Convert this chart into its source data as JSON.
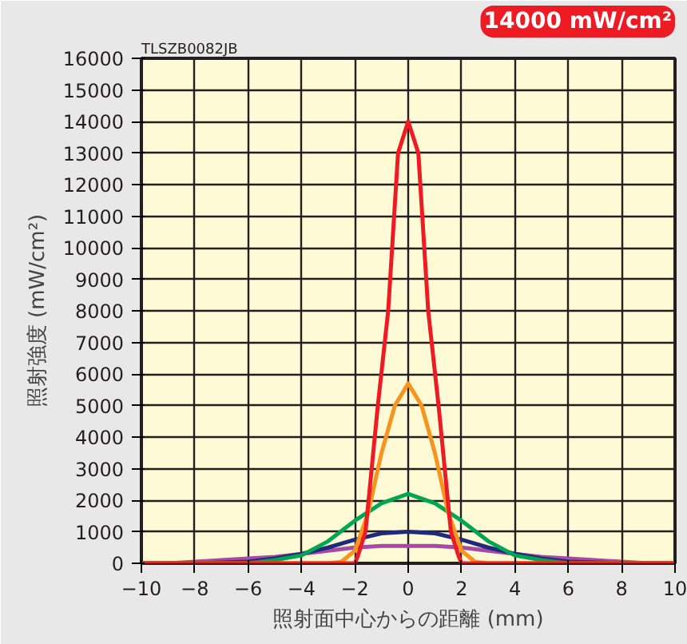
{
  "chart_data": {
    "type": "line",
    "xlabel": "照射面中心からの距離 (mm)",
    "ylabel": "照射強度 (mW/cm²)",
    "xlim": [
      -10,
      10
    ],
    "ylim": [
      0,
      16000
    ],
    "xticks": [
      -10,
      -8,
      -6,
      -4,
      -2,
      0,
      2,
      4,
      6,
      8,
      10
    ],
    "yticks": [
      0,
      1000,
      2000,
      3000,
      4000,
      5000,
      6000,
      7000,
      8000,
      9000,
      10000,
      11000,
      12000,
      13000,
      14000,
      15000,
      16000
    ],
    "grid": true,
    "marker": "none",
    "line_style": "solid",
    "annotations": [
      "TLSZB0082JB",
      "14000 mW/cm²"
    ],
    "series": [
      {
        "color": "#a54aa5",
        "x": [
          -10,
          -9,
          -8,
          -7,
          -6,
          -5,
          -4,
          -3,
          -2,
          -1,
          0,
          1,
          2,
          3,
          4,
          5,
          6,
          7,
          8,
          9,
          10
        ],
        "values": [
          0,
          0,
          50,
          100,
          150,
          200,
          300,
          400,
          500,
          550,
          550,
          550,
          500,
          400,
          300,
          200,
          150,
          100,
          50,
          0,
          0
        ]
      },
      {
        "color": "#1f2a7a",
        "x": [
          -10,
          -8,
          -6,
          -5,
          -4,
          -3,
          -2,
          -1,
          0,
          1,
          2,
          3,
          4,
          5,
          6,
          8,
          10
        ],
        "values": [
          0,
          0,
          50,
          150,
          300,
          500,
          750,
          950,
          1000,
          950,
          750,
          500,
          300,
          150,
          50,
          0,
          0
        ]
      },
      {
        "color": "#00a651",
        "x": [
          -10,
          -8,
          -6,
          -5,
          -4,
          -3,
          -2,
          -1,
          0,
          1,
          2,
          3,
          4,
          5,
          6,
          8,
          10
        ],
        "values": [
          0,
          0,
          0,
          100,
          250,
          700,
          1350,
          1900,
          2200,
          1900,
          1350,
          700,
          250,
          100,
          0,
          0,
          0
        ]
      },
      {
        "color": "#f7941d",
        "x": [
          -10,
          -3,
          -2.5,
          -2,
          -1.5,
          -1,
          -0.5,
          0,
          0.5,
          1,
          1.5,
          2,
          2.5,
          3,
          10
        ],
        "values": [
          0,
          0,
          50,
          400,
          1600,
          3500,
          5000,
          5700,
          5000,
          3500,
          1600,
          400,
          50,
          0,
          0
        ]
      },
      {
        "color": "#ed1c24",
        "x": [
          -10,
          -2,
          -1.9,
          -1.6,
          -1.15,
          -0.75,
          -0.38,
          0,
          0.38,
          0.75,
          1.15,
          1.6,
          1.9,
          2,
          10
        ],
        "values": [
          0,
          0,
          200,
          1000,
          4900,
          8000,
          13000,
          14000,
          13000,
          8000,
          4900,
          1000,
          200,
          0,
          0
        ]
      }
    ]
  }
}
